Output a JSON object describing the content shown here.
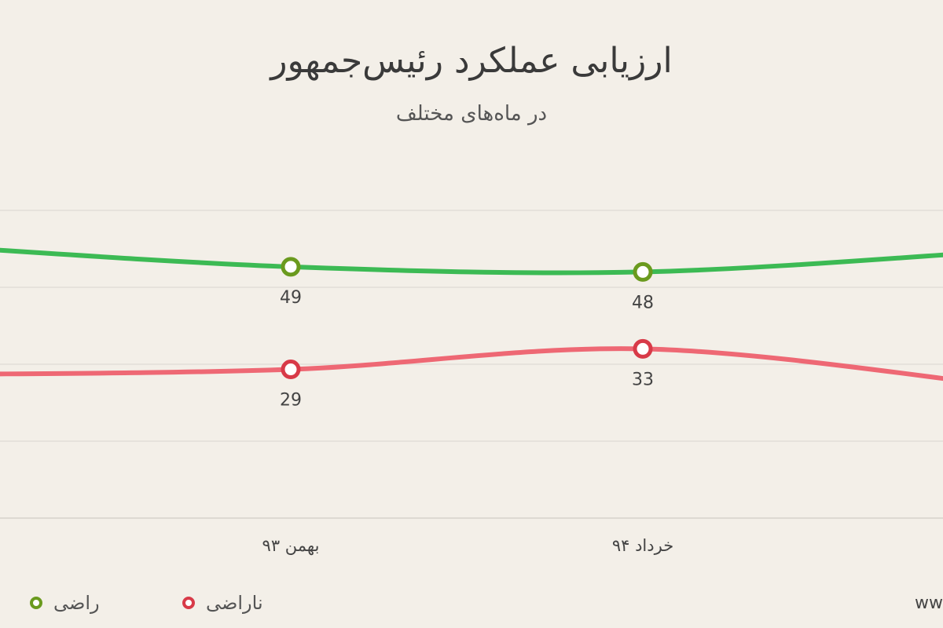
{
  "chart_data": {
    "type": "line",
    "title": "ارزیابی عملکرد رئیس‌جمهور",
    "subtitle": "در ماه‌های مختلف",
    "categories": [
      "بهمن ۹۳",
      "خرداد ۹۴"
    ],
    "series": [
      {
        "name": "راضی",
        "color": "#6a9a1e",
        "line_color": "#3cba54",
        "values": [
          49,
          48
        ]
      },
      {
        "name": "ناراضی",
        "color": "#d83a48",
        "line_color": "#ee6874",
        "values": [
          29,
          33
        ]
      }
    ],
    "ylim": [
      0,
      60
    ],
    "grid": true,
    "legend_position": "bottom-left"
  },
  "watermark": "www"
}
